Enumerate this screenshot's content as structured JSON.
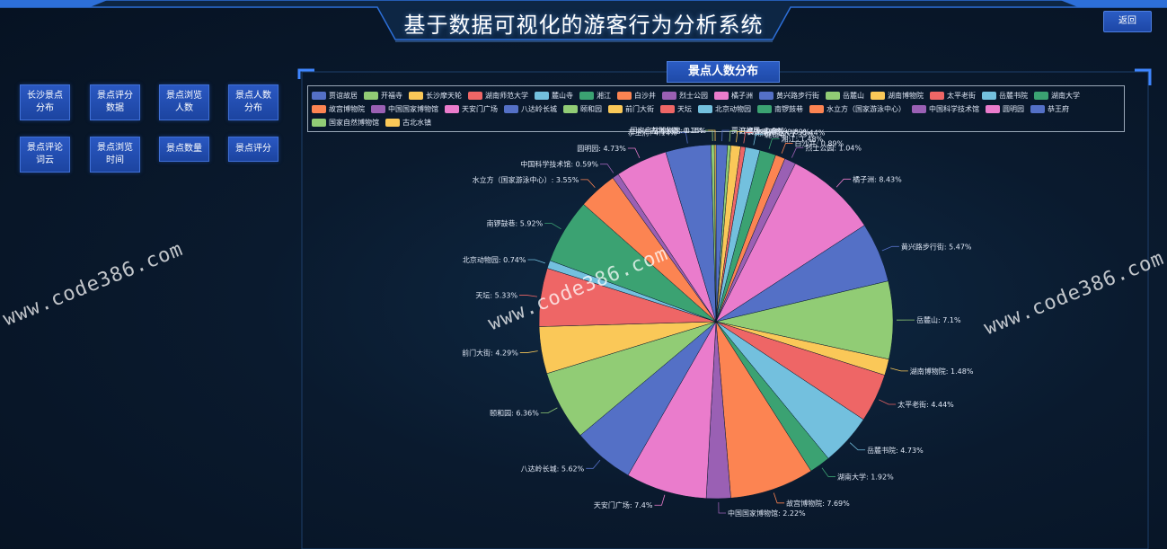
{
  "header": {
    "title": "基于数据可视化的游客行为分析系统",
    "back_label": "返回"
  },
  "nav": [
    "长沙景点分布",
    "景点评分数据",
    "景点浏览人数",
    "景点人数分布",
    "景点评论词云",
    "景点浏览时间",
    "景点数量",
    "景点评分"
  ],
  "panel": {
    "title": "景点人数分布"
  },
  "watermark": "www.code386.com",
  "colors": [
    "#5470c6",
    "#91cc75",
    "#fac858",
    "#ee6666",
    "#73c0de",
    "#3ba272",
    "#fc8452",
    "#9a60b4",
    "#ea7ccc"
  ],
  "chart_data": {
    "type": "pie",
    "legend_position": "top",
    "slices": [
      {
        "name": "贾谊故居",
        "value": 1.04,
        "label": "贾谊故居: 1.04%"
      },
      {
        "name": "开福寺",
        "value": 0.3,
        "label": "开福寺: 0.3%"
      },
      {
        "name": "长沙摩天轮",
        "value": 0.89,
        "label": "长沙摩天轮: 0.89%"
      },
      {
        "name": "湖南师范大学",
        "value": 0.44,
        "label": "湖南师范大学: 0.44%"
      },
      {
        "name": "麓山寺",
        "value": 1.33,
        "label": "麓山寺: 1.33%"
      },
      {
        "name": "湘江",
        "value": 1.48,
        "label": "湘江: 1.48%"
      },
      {
        "name": "白沙井",
        "value": 0.89,
        "label": "白沙井: 0.89%"
      },
      {
        "name": "烈士公园",
        "value": 1.04,
        "label": "烈士公园: 1.04%"
      },
      {
        "name": "橘子洲",
        "value": 8.43,
        "label": "橘子洲: 8.43%"
      },
      {
        "name": "黄兴路步行街",
        "value": 5.47,
        "label": "黄兴路步行街: 5.47%"
      },
      {
        "name": "岳麓山",
        "value": 7.1,
        "label": "岳麓山: 7.1%"
      },
      {
        "name": "湖南博物院",
        "value": 1.48,
        "label": "湖南博物院: 1.48%"
      },
      {
        "name": "太平老街",
        "value": 4.44,
        "label": "太平老街: 4.44%"
      },
      {
        "name": "岳麓书院",
        "value": 4.73,
        "label": "岳麓书院: 4.73%"
      },
      {
        "name": "湖南大学",
        "value": 1.92,
        "label": "湖南大学: 1.92%"
      },
      {
        "name": "故宫博物院",
        "value": 7.69,
        "label": "故宫博物院: 7.69%"
      },
      {
        "name": "中国国家博物馆",
        "value": 2.22,
        "label": "中国国家博物馆: 2.22%"
      },
      {
        "name": "天安门广场",
        "value": 7.4,
        "label": "天安门广场: 7.4%"
      },
      {
        "name": "八达岭长城",
        "value": 5.62,
        "label": "八达岭长城: 5.62%"
      },
      {
        "name": "颐和园",
        "value": 6.36,
        "label": "颐和园: 6.36%"
      },
      {
        "name": "前门大街",
        "value": 4.29,
        "label": "前门大街: 4.29%"
      },
      {
        "name": "天坛",
        "value": 5.33,
        "label": "天坛: 5.33%"
      },
      {
        "name": "北京动物园",
        "value": 0.74,
        "label": "北京动物园: 0.74%"
      },
      {
        "name": "南锣鼓巷",
        "value": 5.92,
        "label": "南锣鼓巷: 5.92%"
      },
      {
        "name": "水立方（国家游泳中心）",
        "value": 3.55,
        "label": "水立方（国家游泳中心）: 3.55%"
      },
      {
        "name": "中国科学技术馆",
        "value": 0.59,
        "label": "中国科学技术馆: 0.59%"
      },
      {
        "name": "圆明园",
        "value": 4.73,
        "label": "圆明园: 4.73%"
      },
      {
        "name": "恭王府",
        "value": 4.14,
        "label": "恭王府: 4.14%"
      },
      {
        "name": "国家自然博物馆",
        "value": 0.3,
        "label": "国家自然博物馆: 0.3%"
      },
      {
        "name": "古北水镇",
        "value": 0.15,
        "label": "古北水镇: 0.15%"
      }
    ]
  }
}
